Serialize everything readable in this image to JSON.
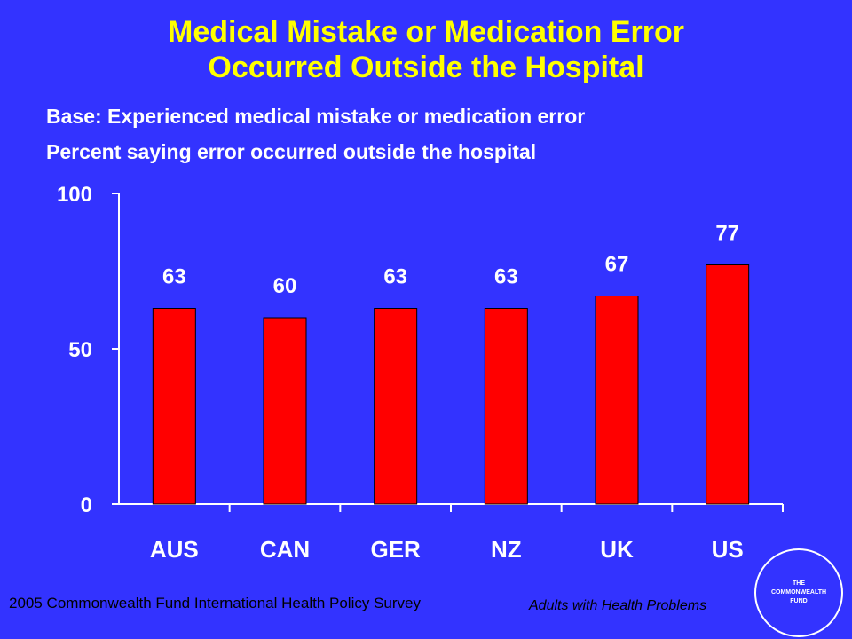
{
  "title_line1": "Medical Mistake or Medication Error",
  "title_line2": "Occurred Outside the Hospital",
  "subtitle_line1": "Base: Experienced medical mistake or medication error",
  "subtitle_line2": "Percent saying error occurred outside the hospital",
  "footer": {
    "source": "2005 Commonwealth Fund International Health Policy Survey",
    "population": "Adults with Health Problems"
  },
  "logo": {
    "line1": "THE",
    "line2": "COMMONWEALTH",
    "line3": "FUND"
  },
  "colors": {
    "background": "#3333ff",
    "title": "#ffff00",
    "bar": "#ff0000",
    "text": "#ffffff"
  },
  "chart_data": {
    "type": "bar",
    "categories": [
      "AUS",
      "CAN",
      "GER",
      "NZ",
      "UK",
      "US"
    ],
    "values": [
      63,
      60,
      63,
      63,
      67,
      77
    ],
    "data_labels": [
      "63",
      "60",
      "63",
      "63",
      "67",
      "77"
    ],
    "ylim": [
      0,
      100
    ],
    "yticks": [
      0,
      50,
      100
    ],
    "ytick_labels": [
      "0",
      "50",
      "100"
    ],
    "grid": false,
    "legend": "none"
  }
}
